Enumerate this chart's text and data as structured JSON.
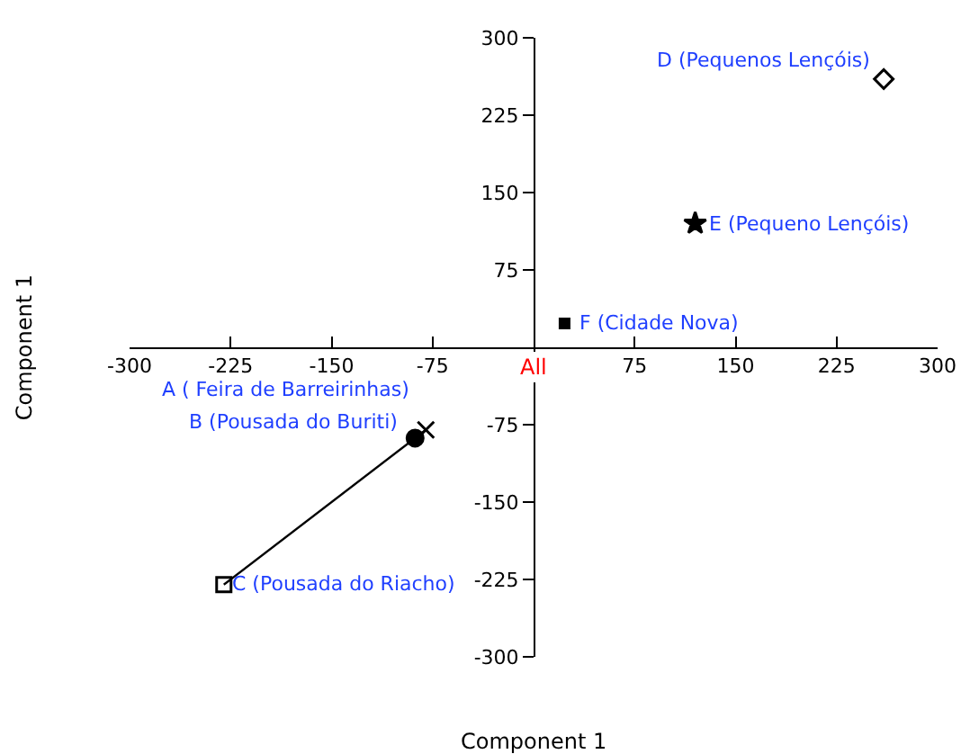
{
  "chart_data": {
    "type": "scatter",
    "xlabel": "Component 1",
    "ylabel": "Component 1",
    "xlim": [
      -300,
      300
    ],
    "ylim": [
      -300,
      300
    ],
    "xticks": [
      -300,
      -225,
      -150,
      -75,
      75,
      150,
      225,
      300
    ],
    "yticks": [
      -300,
      -225,
      -150,
      -75,
      75,
      150,
      225,
      300
    ],
    "annotations": [
      "All"
    ],
    "series": [
      {
        "name": "A ( Feira de Barreirinhas)",
        "color": "#000000",
        "marker": "cross",
        "x": [
          -80
        ],
        "values": [
          -80
        ]
      },
      {
        "name": "B (Pousada do Buriti)",
        "color": "#000000",
        "marker": "circle",
        "x": [
          -88
        ],
        "values": [
          -88
        ]
      },
      {
        "name": "C (Pousada do Riacho)",
        "color": "#000000",
        "marker": "square",
        "x": [
          -230
        ],
        "values": [
          -230
        ]
      },
      {
        "name": "D (Pequenos Lençóis)",
        "color": "#000000",
        "marker": "diamond",
        "x": [
          260
        ],
        "values": [
          260
        ]
      },
      {
        "name": "E (Pequeno Lençóis)",
        "color": "#000000",
        "marker": "star",
        "x": [
          120
        ],
        "values": [
          120
        ]
      },
      {
        "name": "F (Cidade Nova)",
        "color": "#000000",
        "marker": "square",
        "x": [
          23
        ],
        "values": [
          23
        ]
      },
      {
        "type": "line",
        "color": "#000000",
        "x": [
          -230,
          -80
        ],
        "values": [
          -230,
          -80
        ]
      }
    ]
  }
}
